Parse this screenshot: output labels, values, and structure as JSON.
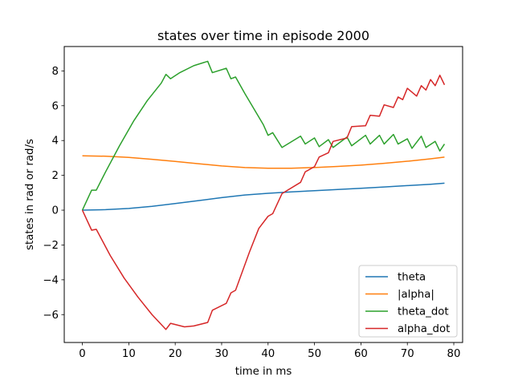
{
  "chart_data": {
    "type": "line",
    "title": "states over time in episode 2000",
    "xlabel": "time in ms",
    "ylabel": "states in rad or rad/s",
    "xlim": [
      -3.9,
      81.9
    ],
    "ylim": [
      -7.6,
      9.4
    ],
    "xticks": [
      0,
      10,
      20,
      30,
      40,
      50,
      60,
      70,
      80
    ],
    "yticks": [
      -6,
      -4,
      -2,
      0,
      2,
      4,
      6,
      8
    ],
    "ytick_labels": [
      "−6",
      "−4",
      "−2",
      "0",
      "2",
      "4",
      "6",
      "8"
    ],
    "grid": false,
    "legend_position": "lower right",
    "series": [
      {
        "name": "theta",
        "color": "#1f77b4",
        "points": [
          [
            0,
            0
          ],
          [
            5,
            0.03
          ],
          [
            10,
            0.1
          ],
          [
            15,
            0.22
          ],
          [
            20,
            0.38
          ],
          [
            25,
            0.55
          ],
          [
            30,
            0.72
          ],
          [
            35,
            0.87
          ],
          [
            40,
            0.97
          ],
          [
            45,
            1.05
          ],
          [
            50,
            1.12
          ],
          [
            55,
            1.19
          ],
          [
            60,
            1.26
          ],
          [
            65,
            1.33
          ],
          [
            70,
            1.41
          ],
          [
            75,
            1.49
          ],
          [
            78,
            1.55
          ]
        ]
      },
      {
        "name": "|alpha|",
        "color": "#ff7f0e",
        "points": [
          [
            0,
            3.12
          ],
          [
            5,
            3.1
          ],
          [
            10,
            3.03
          ],
          [
            15,
            2.92
          ],
          [
            20,
            2.8
          ],
          [
            25,
            2.67
          ],
          [
            30,
            2.54
          ],
          [
            35,
            2.45
          ],
          [
            40,
            2.41
          ],
          [
            45,
            2.41
          ],
          [
            50,
            2.45
          ],
          [
            55,
            2.51
          ],
          [
            60,
            2.59
          ],
          [
            65,
            2.69
          ],
          [
            70,
            2.81
          ],
          [
            75,
            2.95
          ],
          [
            78,
            3.05
          ]
        ]
      },
      {
        "name": "theta_dot",
        "color": "#2ca02c",
        "points": [
          [
            0,
            0
          ],
          [
            2,
            1.15
          ],
          [
            3,
            1.15
          ],
          [
            5,
            2.2
          ],
          [
            8,
            3.7
          ],
          [
            11,
            5.1
          ],
          [
            14,
            6.3
          ],
          [
            17,
            7.3
          ],
          [
            18,
            7.8
          ],
          [
            19,
            7.55
          ],
          [
            21,
            7.9
          ],
          [
            24,
            8.3
          ],
          [
            27,
            8.55
          ],
          [
            28,
            7.9
          ],
          [
            31,
            8.15
          ],
          [
            32,
            7.55
          ],
          [
            33,
            7.65
          ],
          [
            35,
            6.7
          ],
          [
            37,
            5.8
          ],
          [
            39,
            4.9
          ],
          [
            40,
            4.3
          ],
          [
            41,
            4.45
          ],
          [
            43,
            3.6
          ],
          [
            47,
            4.25
          ],
          [
            48,
            3.8
          ],
          [
            50,
            4.15
          ],
          [
            51,
            3.65
          ],
          [
            53,
            4.05
          ],
          [
            54,
            3.6
          ],
          [
            57,
            4.2
          ],
          [
            58,
            3.7
          ],
          [
            61,
            4.3
          ],
          [
            62,
            3.8
          ],
          [
            64,
            4.3
          ],
          [
            65,
            3.8
          ],
          [
            67,
            4.35
          ],
          [
            68,
            3.8
          ],
          [
            70,
            4.1
          ],
          [
            71,
            3.55
          ],
          [
            73,
            4.25
          ],
          [
            74,
            3.6
          ],
          [
            76,
            3.95
          ],
          [
            77,
            3.4
          ],
          [
            78,
            3.8
          ]
        ]
      },
      {
        "name": "alpha_dot",
        "color": "#d62728",
        "points": [
          [
            0,
            0
          ],
          [
            2,
            -1.15
          ],
          [
            3,
            -1.1
          ],
          [
            6,
            -2.6
          ],
          [
            9,
            -3.9
          ],
          [
            12,
            -5.0
          ],
          [
            15,
            -6.0
          ],
          [
            18,
            -6.85
          ],
          [
            19,
            -6.5
          ],
          [
            22,
            -6.7
          ],
          [
            24,
            -6.65
          ],
          [
            27,
            -6.45
          ],
          [
            28,
            -5.75
          ],
          [
            31,
            -5.35
          ],
          [
            32,
            -4.75
          ],
          [
            33,
            -4.6
          ],
          [
            36,
            -2.4
          ],
          [
            38,
            -1.05
          ],
          [
            40,
            -0.35
          ],
          [
            41,
            -0.2
          ],
          [
            43,
            0.95
          ],
          [
            47,
            1.6
          ],
          [
            48,
            2.2
          ],
          [
            50,
            2.5
          ],
          [
            51,
            3.05
          ],
          [
            53,
            3.3
          ],
          [
            54,
            3.95
          ],
          [
            57,
            4.15
          ],
          [
            58,
            4.8
          ],
          [
            61,
            4.85
          ],
          [
            62,
            5.45
          ],
          [
            64,
            5.4
          ],
          [
            65,
            6.05
          ],
          [
            67,
            5.9
          ],
          [
            68,
            6.5
          ],
          [
            69,
            6.35
          ],
          [
            70,
            7.0
          ],
          [
            72,
            6.55
          ],
          [
            73,
            7.15
          ],
          [
            74,
            6.9
          ],
          [
            75,
            7.5
          ],
          [
            76,
            7.15
          ],
          [
            77,
            7.75
          ],
          [
            78,
            7.2
          ]
        ]
      }
    ]
  }
}
